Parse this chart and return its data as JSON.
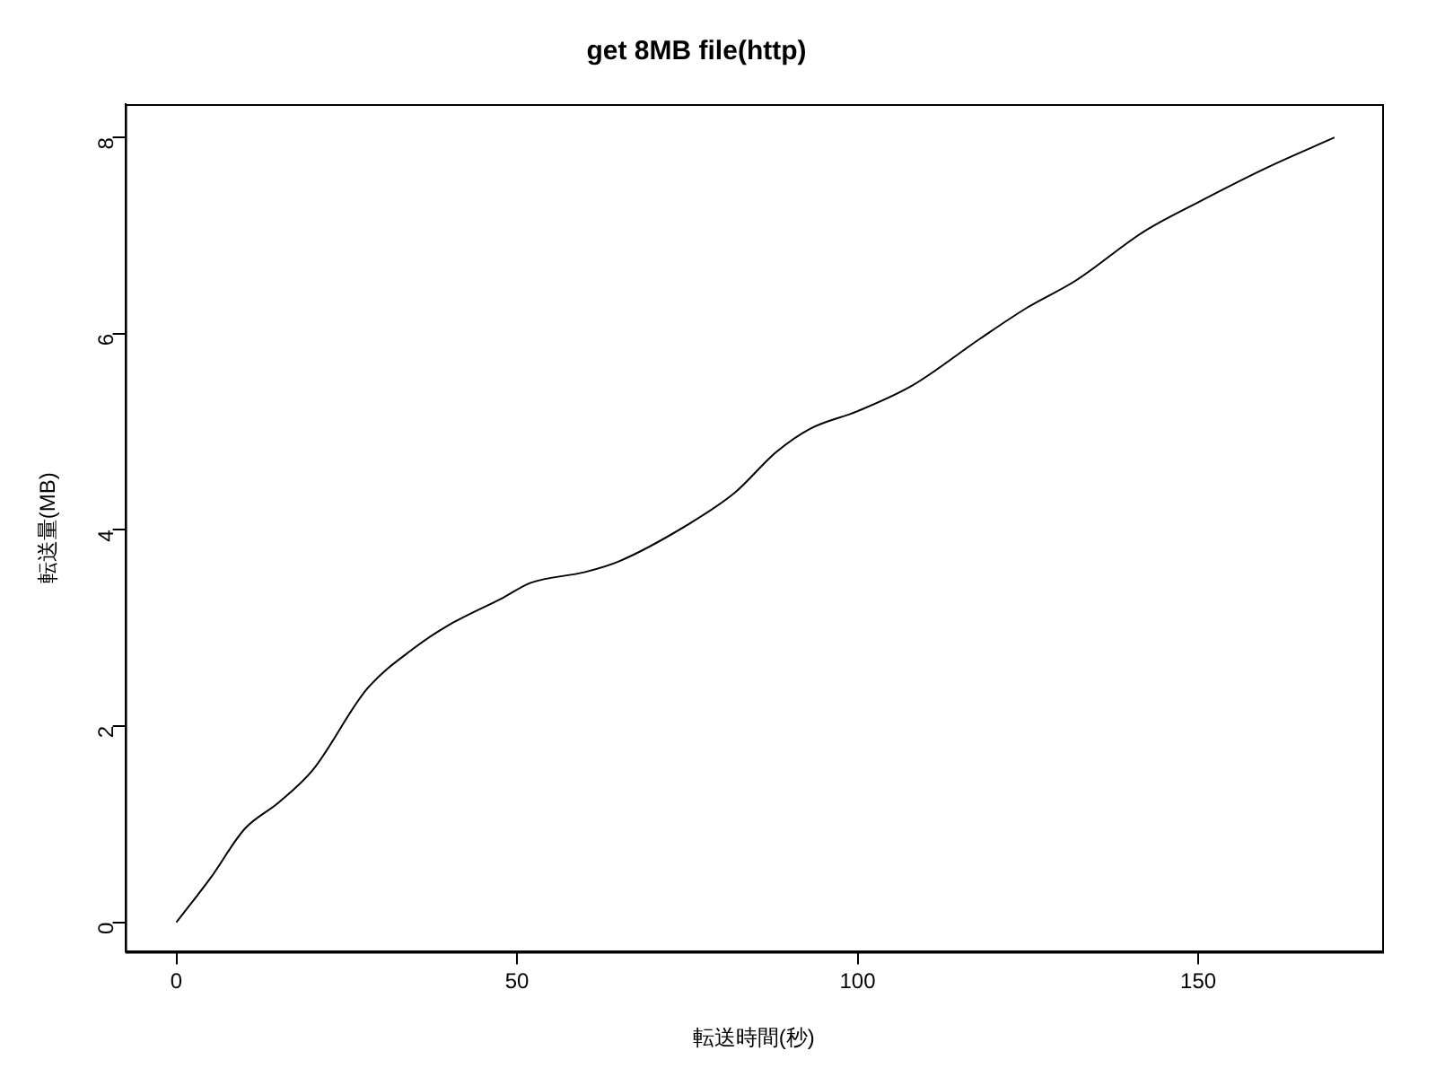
{
  "chart_data": {
    "type": "line",
    "title": "get 8MB file(http)",
    "xlabel": "転送時間(秒)",
    "ylabel": "転送量(MB)",
    "x": [
      0,
      5,
      10,
      15,
      20,
      28,
      35,
      40,
      48,
      52,
      60,
      65,
      75,
      82,
      88,
      93,
      100,
      108,
      118,
      125,
      132,
      142,
      150,
      160,
      170
    ],
    "series": [
      {
        "color": "#000000",
        "values": [
          0,
          0.45,
          0.95,
          1.22,
          1.55,
          2.38,
          2.8,
          3.03,
          3.31,
          3.46,
          3.57,
          3.68,
          4.05,
          4.38,
          4.79,
          5.03,
          5.21,
          5.47,
          5.95,
          6.27,
          6.54,
          7.04,
          7.34,
          7.69,
          8.0
        ]
      }
    ],
    "xlim": [
      -7.5,
      177
    ],
    "ylim": [
      -0.3,
      8.34
    ],
    "xticks": [
      0,
      50,
      100,
      150
    ],
    "yticks": [
      0,
      2,
      4,
      6,
      8
    ],
    "grid": false,
    "legend": false,
    "marker": "none",
    "line_style": "solid"
  }
}
